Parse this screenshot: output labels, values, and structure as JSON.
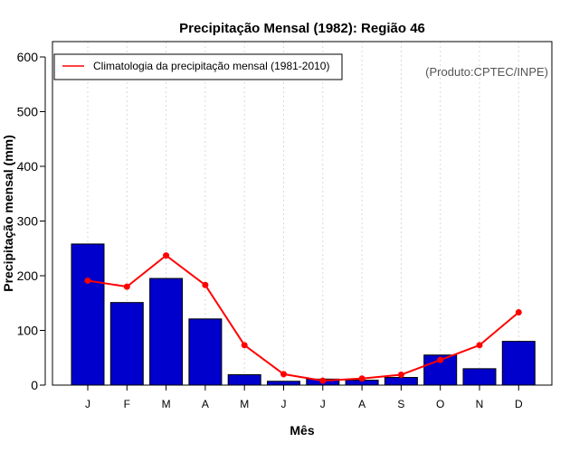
{
  "chart_data": {
    "type": "bar",
    "title": "Precipitação Mensal (1982): Região 46",
    "xlabel": "Mês",
    "ylabel": "Precipitação mensal (mm)",
    "categories": [
      "J",
      "F",
      "M",
      "A",
      "M",
      "J",
      "J",
      "A",
      "S",
      "O",
      "N",
      "D"
    ],
    "ylim": [
      0,
      600
    ],
    "yticks": [
      "0",
      "100",
      "200",
      "300",
      "400",
      "500",
      "600"
    ],
    "series": [
      {
        "name": "Precipitação mensal (1982)",
        "kind": "bar",
        "color": "#0000cc",
        "values": [
          258,
          151,
          195,
          121,
          19,
          7,
          11,
          9,
          14,
          55,
          30,
          80
        ]
      },
      {
        "name": "Climatologia da precipitação mensal (1981-2010)",
        "kind": "line",
        "color": "#ff0000",
        "values": [
          191,
          180,
          237,
          183,
          73,
          20,
          8,
          12,
          19,
          46,
          73,
          133
        ]
      }
    ],
    "legend": {
      "position": "top-left",
      "entries": [
        "Climatologia da precipitação mensal (1981-2010)"
      ]
    },
    "credit": "(Produto:CPTEC/INPE)",
    "grid": "vertical dotted"
  }
}
